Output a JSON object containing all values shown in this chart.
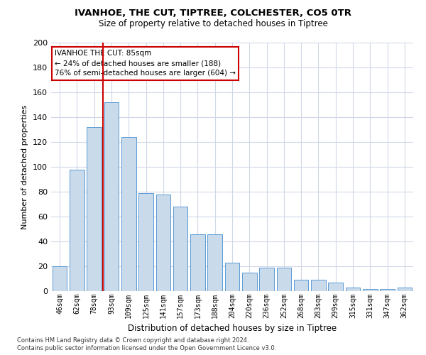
{
  "title1": "IVANHOE, THE CUT, TIPTREE, COLCHESTER, CO5 0TR",
  "title2": "Size of property relative to detached houses in Tiptree",
  "xlabel": "Distribution of detached houses by size in Tiptree",
  "ylabel": "Number of detached properties",
  "categories": [
    "46sqm",
    "62sqm",
    "78sqm",
    "93sqm",
    "109sqm",
    "125sqm",
    "141sqm",
    "157sqm",
    "173sqm",
    "188sqm",
    "204sqm",
    "220sqm",
    "236sqm",
    "252sqm",
    "268sqm",
    "283sqm",
    "299sqm",
    "315sqm",
    "331sqm",
    "347sqm",
    "362sqm"
  ],
  "values": [
    20,
    98,
    132,
    152,
    124,
    79,
    78,
    68,
    46,
    46,
    23,
    15,
    19,
    19,
    9,
    9,
    7,
    3,
    2,
    2,
    3
  ],
  "bar_color": "#c9daea",
  "bar_edge_color": "#5b9bd5",
  "vline_x_index": 2,
  "vline_color": "#cc0000",
  "annotation_title": "IVANHOE THE CUT: 85sqm",
  "annotation_line1": "← 24% of detached houses are smaller (188)",
  "annotation_line2": "76% of semi-detached houses are larger (604) →",
  "annotation_box_color": "#cc0000",
  "ylim": [
    0,
    200
  ],
  "yticks": [
    0,
    20,
    40,
    60,
    80,
    100,
    120,
    140,
    160,
    180,
    200
  ],
  "footer1": "Contains HM Land Registry data © Crown copyright and database right 2024.",
  "footer2": "Contains public sector information licensed under the Open Government Licence v3.0.",
  "background_color": "#ffffff",
  "grid_color": "#d0d8e8",
  "title1_fontsize": 9.5,
  "title2_fontsize": 8.5
}
